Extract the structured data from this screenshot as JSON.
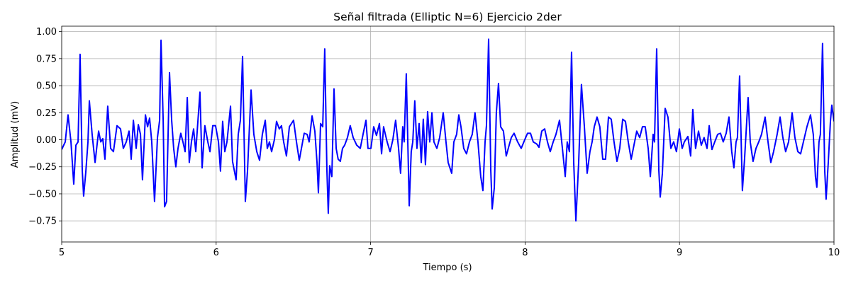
{
  "chart_data": {
    "type": "line",
    "title": "Señal filtrada (Elliptic N=6) Ejercicio 2der",
    "xlabel": "Tiempo (s)",
    "ylabel": "Amplitud (mV)",
    "color": "#0000ff",
    "grid": true,
    "xlim": [
      5,
      10
    ],
    "ylim": [
      -0.945,
      1.05
    ],
    "xticks": [
      5,
      6,
      7,
      8,
      9,
      10
    ],
    "yticks": [
      {
        "value": -0.75,
        "label": "−0.75"
      },
      {
        "value": -0.5,
        "label": "−0.50"
      },
      {
        "value": -0.25,
        "label": "−0.25"
      },
      {
        "value": 0,
        "label": "0.00"
      },
      {
        "value": 0.25,
        "label": "0.25"
      },
      {
        "value": 0.5,
        "label": "0.50"
      },
      {
        "value": 0.75,
        "label": "0.75"
      },
      {
        "value": 1,
        "label": "1.00"
      }
    ],
    "x": [
      5.0,
      5.023,
      5.041,
      5.06,
      5.078,
      5.092,
      5.106,
      5.119,
      5.133,
      5.142,
      5.156,
      5.17,
      5.179,
      5.197,
      5.216,
      5.239,
      5.253,
      5.266,
      5.28,
      5.298,
      5.317,
      5.335,
      5.358,
      5.381,
      5.399,
      5.418,
      5.436,
      5.45,
      5.464,
      5.482,
      5.496,
      5.51,
      5.523,
      5.542,
      5.556,
      5.569,
      5.583,
      5.601,
      5.62,
      5.634,
      5.643,
      5.657,
      5.666,
      5.679,
      5.698,
      5.712,
      5.725,
      5.739,
      5.753,
      5.771,
      5.785,
      5.799,
      5.813,
      5.826,
      5.84,
      5.854,
      5.868,
      5.895,
      5.909,
      5.927,
      5.946,
      5.96,
      5.978,
      5.996,
      6.015,
      6.028,
      6.042,
      6.056,
      6.07,
      6.093,
      6.106,
      6.129,
      6.143,
      6.157,
      6.171,
      6.189,
      6.203,
      6.226,
      6.244,
      6.263,
      6.281,
      6.299,
      6.318,
      6.331,
      6.345,
      6.359,
      6.377,
      6.391,
      6.409,
      6.423,
      6.437,
      6.455,
      6.474,
      6.501,
      6.52,
      6.538,
      6.552,
      6.57,
      6.589,
      6.602,
      6.621,
      6.639,
      6.653,
      6.662,
      6.676,
      6.69,
      6.703,
      6.717,
      6.726,
      6.735,
      6.749,
      6.763,
      6.777,
      6.79,
      6.804,
      6.818,
      6.832,
      6.85,
      6.868,
      6.887,
      6.91,
      6.933,
      6.951,
      6.97,
      6.983,
      7.002,
      7.02,
      7.038,
      7.057,
      7.071,
      7.084,
      7.107,
      7.126,
      7.144,
      7.162,
      7.181,
      7.194,
      7.208,
      7.217,
      7.231,
      7.25,
      7.263,
      7.273,
      7.286,
      7.3,
      7.314,
      7.328,
      7.341,
      7.355,
      7.369,
      7.383,
      7.397,
      7.41,
      7.429,
      7.447,
      7.47,
      7.488,
      7.502,
      7.525,
      7.539,
      7.557,
      7.571,
      7.585,
      7.603,
      7.621,
      7.64,
      7.658,
      7.676,
      7.695,
      7.713,
      7.727,
      7.741,
      7.75,
      7.764,
      7.778,
      7.787,
      7.801,
      7.814,
      7.828,
      7.842,
      7.86,
      7.878,
      7.897,
      7.911,
      7.929,
      7.952,
      7.975,
      7.998,
      8.016,
      8.035,
      8.053,
      8.076,
      8.09,
      8.108,
      8.127,
      8.145,
      8.163,
      8.182,
      8.2,
      8.223,
      8.241,
      8.26,
      8.273,
      8.287,
      8.301,
      8.315,
      8.329,
      8.347,
      8.365,
      8.384,
      8.402,
      8.42,
      8.434,
      8.448,
      8.466,
      8.484,
      8.503,
      8.521,
      8.54,
      8.558,
      8.576,
      8.595,
      8.613,
      8.632,
      8.65,
      8.668,
      8.687,
      8.705,
      8.723,
      8.742,
      8.76,
      8.778,
      8.797,
      8.811,
      8.829,
      8.838,
      8.852,
      8.866,
      8.875,
      8.889,
      8.907,
      8.925,
      8.944,
      8.962,
      8.98,
      8.999,
      9.017,
      9.031,
      9.054,
      9.072,
      9.086,
      9.104,
      9.123,
      9.141,
      9.159,
      9.178,
      9.192,
      9.21,
      9.228,
      9.247,
      9.265,
      9.283,
      9.302,
      9.32,
      9.338,
      9.352,
      9.366,
      9.375,
      9.389,
      9.407,
      9.421,
      9.444,
      9.458,
      9.476,
      9.495,
      9.513,
      9.531,
      9.554,
      9.573,
      9.591,
      9.609,
      9.632,
      9.651,
      9.669,
      9.687,
      9.706,
      9.729,
      9.747,
      9.766,
      9.784,
      9.802,
      9.825,
      9.848,
      9.866,
      9.88,
      9.889,
      9.903,
      9.912,
      9.926,
      9.94,
      9.949,
      9.963,
      9.977,
      9.986,
      10.0
    ],
    "values": [
      -0.09,
      -0.02,
      0.23,
      -0.02,
      -0.41,
      -0.05,
      -0.02,
      0.79,
      -0.28,
      -0.52,
      -0.3,
      -0.02,
      0.36,
      0.05,
      -0.21,
      0.08,
      -0.02,
      0.01,
      -0.18,
      0.31,
      -0.08,
      -0.11,
      0.13,
      0.1,
      -0.08,
      -0.02,
      0.08,
      -0.18,
      0.18,
      -0.08,
      0.14,
      0.05,
      -0.37,
      0.23,
      0.12,
      0.2,
      -0.02,
      -0.57,
      0.02,
      0.18,
      0.92,
      0.18,
      -0.62,
      -0.57,
      0.62,
      0.18,
      -0.08,
      -0.25,
      -0.08,
      0.06,
      -0.02,
      -0.11,
      0.39,
      -0.21,
      -0.02,
      0.1,
      -0.11,
      0.44,
      -0.26,
      0.13,
      -0.02,
      -0.11,
      0.13,
      0.13,
      -0.02,
      -0.29,
      0.17,
      -0.11,
      -0.02,
      0.31,
      -0.2,
      -0.37,
      0.05,
      0.18,
      0.77,
      -0.57,
      -0.29,
      0.46,
      0.05,
      -0.11,
      -0.19,
      0.05,
      0.18,
      -0.08,
      -0.02,
      -0.11,
      0.0,
      0.17,
      0.1,
      0.13,
      -0.02,
      -0.15,
      0.12,
      0.18,
      -0.02,
      -0.19,
      -0.08,
      0.06,
      0.05,
      -0.02,
      0.22,
      0.08,
      -0.21,
      -0.49,
      0.15,
      0.12,
      0.84,
      -0.28,
      -0.68,
      -0.24,
      -0.34,
      0.47,
      -0.08,
      -0.18,
      -0.2,
      -0.08,
      -0.05,
      0.02,
      0.13,
      0.02,
      -0.05,
      -0.08,
      0.05,
      0.18,
      -0.08,
      -0.08,
      0.12,
      0.04,
      0.15,
      -0.13,
      0.12,
      -0.02,
      -0.11,
      0.0,
      0.18,
      -0.08,
      -0.31,
      0.12,
      -0.02,
      0.61,
      -0.61,
      -0.11,
      -0.02,
      0.36,
      -0.08,
      0.15,
      -0.21,
      0.19,
      -0.23,
      0.26,
      -0.02,
      0.25,
      -0.02,
      -0.08,
      0.02,
      0.25,
      -0.02,
      -0.21,
      -0.31,
      -0.02,
      0.05,
      0.23,
      0.12,
      -0.08,
      -0.13,
      -0.02,
      0.05,
      0.25,
      -0.02,
      -0.34,
      -0.47,
      -0.02,
      0.13,
      0.93,
      -0.28,
      -0.64,
      -0.44,
      0.25,
      0.52,
      0.12,
      0.08,
      -0.15,
      -0.05,
      0.02,
      0.06,
      -0.02,
      -0.08,
      0.0,
      0.06,
      0.06,
      -0.02,
      -0.04,
      -0.07,
      0.08,
      0.1,
      -0.02,
      -0.11,
      -0.02,
      0.05,
      0.18,
      -0.07,
      -0.34,
      -0.02,
      -0.11,
      0.81,
      -0.21,
      -0.75,
      -0.21,
      0.51,
      0.12,
      -0.31,
      -0.11,
      -0.02,
      0.12,
      0.21,
      0.12,
      -0.18,
      -0.18,
      0.21,
      0.19,
      -0.02,
      -0.2,
      -0.08,
      0.19,
      0.17,
      -0.02,
      -0.18,
      -0.05,
      0.08,
      0.02,
      0.12,
      0.12,
      -0.08,
      -0.34,
      0.05,
      -0.02,
      0.84,
      -0.28,
      -0.53,
      -0.31,
      0.29,
      0.21,
      -0.08,
      -0.02,
      -0.11,
      0.1,
      -0.08,
      -0.02,
      0.03,
      -0.15,
      0.28,
      -0.08,
      0.08,
      -0.05,
      0.02,
      -0.08,
      0.13,
      -0.09,
      -0.02,
      0.05,
      0.06,
      -0.02,
      0.06,
      0.21,
      -0.11,
      -0.26,
      -0.02,
      0.02,
      0.59,
      -0.47,
      -0.18,
      0.39,
      -0.02,
      -0.2,
      -0.08,
      -0.02,
      0.05,
      0.21,
      -0.02,
      -0.21,
      -0.11,
      0.05,
      0.21,
      0.02,
      -0.11,
      -0.02,
      0.25,
      0.02,
      -0.11,
      -0.13,
      -0.02,
      0.12,
      0.23,
      0.05,
      -0.34,
      -0.44,
      -0.02,
      0.05,
      0.89,
      -0.28,
      -0.55,
      -0.21,
      0.17,
      0.32,
      0.17
    ]
  }
}
